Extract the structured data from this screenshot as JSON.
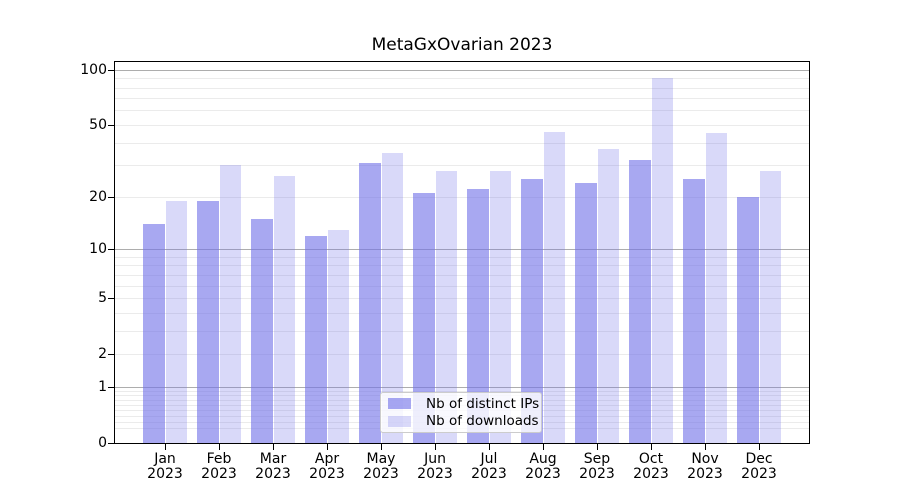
{
  "chart_data": {
    "type": "bar",
    "title": "MetaGxOvarian 2023",
    "x_months": [
      "Jan",
      "Feb",
      "Mar",
      "Apr",
      "May",
      "Jun",
      "Jul",
      "Aug",
      "Sep",
      "Oct",
      "Nov",
      "Dec"
    ],
    "x_year": "2023",
    "series": [
      {
        "name": "Nb of distinct IPs",
        "color": "rgba(114,114,232,0.62)",
        "values": [
          14,
          19,
          15,
          12,
          31,
          21,
          22,
          25,
          24,
          32,
          25,
          20
        ]
      },
      {
        "name": "Nb of downloads",
        "color": "rgba(114,114,232,0.27)",
        "values": [
          19,
          30,
          26,
          13,
          35,
          28,
          28,
          46,
          37,
          90,
          45,
          28
        ]
      }
    ],
    "y_scale": "log1p",
    "ylim": [
      0,
      110
    ],
    "y_ticks": [
      0,
      1,
      2,
      5,
      10,
      20,
      50,
      100
    ],
    "y_major_gridlines": [
      1,
      10,
      100
    ],
    "y_minor_gridlines": [
      0.2,
      0.3,
      0.4,
      0.5,
      0.6,
      0.7,
      0.8,
      0.9,
      2,
      3,
      4,
      5,
      6,
      7,
      8,
      9,
      20,
      30,
      40,
      50,
      60,
      70,
      80,
      90
    ],
    "grid": true,
    "legend_position": "lower center",
    "colors": {
      "grid_major": "#adadad",
      "grid_minor": "#ebebeb",
      "axis": "#000000",
      "background": "#ffffff"
    }
  }
}
